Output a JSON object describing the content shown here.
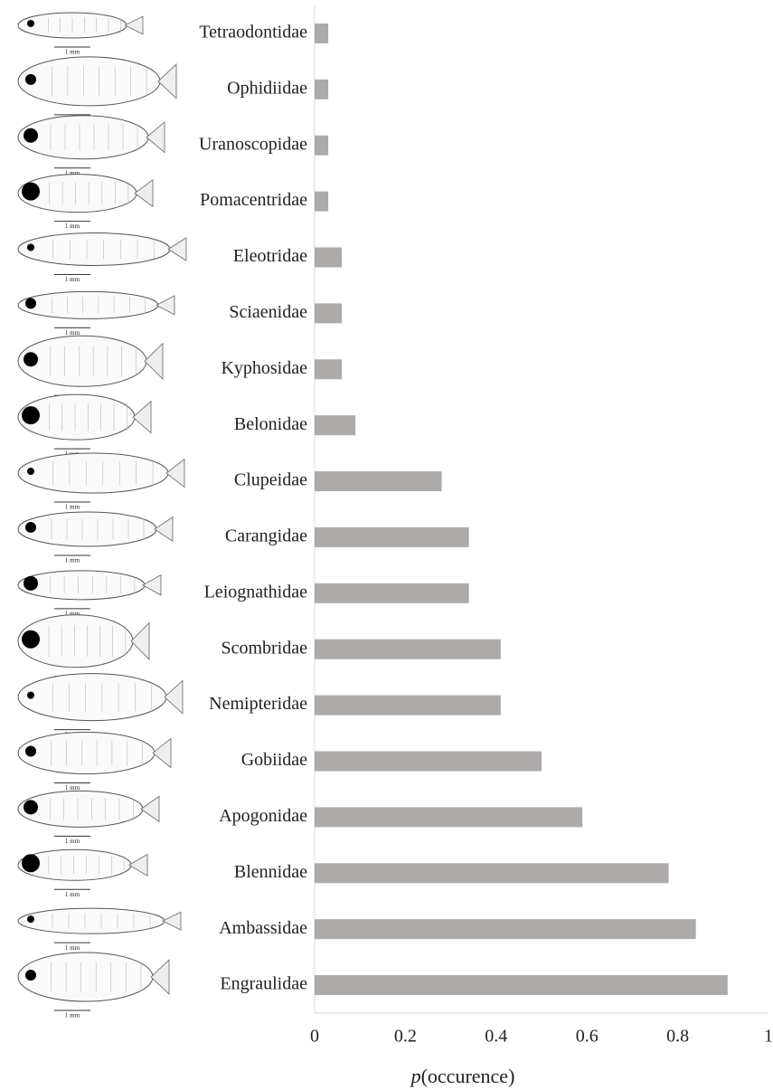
{
  "chart_data": {
    "type": "bar",
    "orientation": "horizontal",
    "categories": [
      "Tetraodontidae",
      "Ophidiidae",
      "Uranoscopidae",
      "Pomacentridae",
      "Eleotridae",
      "Sciaenidae",
      "Kyphosidae",
      "Belonidae",
      "Clupeidae",
      "Carangidae",
      "Leiognathidae",
      "Scombridae",
      "Nemipteridae",
      "Gobiidae",
      "Apogonidae",
      "Blennidae",
      "Ambassidae",
      "Engraulidae"
    ],
    "values": [
      0.03,
      0.03,
      0.03,
      0.03,
      0.06,
      0.06,
      0.06,
      0.09,
      0.28,
      0.34,
      0.34,
      0.41,
      0.41,
      0.5,
      0.59,
      0.78,
      0.84,
      0.91
    ],
    "color": "#aeaaaa",
    "xlim": [
      0,
      1
    ],
    "xticks": [
      0,
      0.2,
      0.4,
      0.6,
      0.8,
      1
    ],
    "grid": false,
    "xlabel_symbol": "p",
    "xlabel": "(occurence)",
    "illustration_scale_label": "1 mm"
  }
}
